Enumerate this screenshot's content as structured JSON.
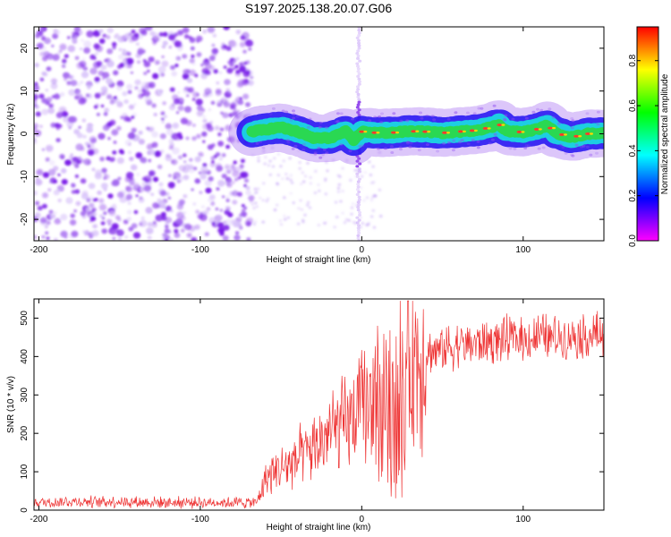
{
  "figure": {
    "title": "S197.2025.138.20.07.G06"
  },
  "chart_data": [
    {
      "type": "heatmap",
      "panel": "top",
      "xlabel": "Height of straight line (km)",
      "ylabel": "Frequency (Hz)",
      "xlim": [
        -203,
        150
      ],
      "ylim": [
        -25,
        25
      ],
      "x_ticks": [
        -200,
        -100,
        0,
        100
      ],
      "y_ticks": [
        20,
        10,
        0,
        -10,
        -20
      ],
      "colorbar": {
        "label": "Normalized spectral amplitude",
        "range": [
          0,
          0.95
        ],
        "ticks": [
          0.0,
          0.2,
          0.4,
          0.6,
          0.8
        ],
        "colormap": [
          "#ff00ff",
          "#0000ff",
          "#00ffff",
          "#00ff00",
          "#ffff00",
          "#ff0000"
        ]
      },
      "features": {
        "noise_region_x": [
          -203,
          -68
        ],
        "signal_start_x": -68,
        "spike_x": -2,
        "ridge": {
          "x": [
            -68,
            -60,
            -50,
            -40,
            -30,
            -20,
            -10,
            -5,
            0,
            10,
            20,
            30,
            40,
            50,
            60,
            70,
            80,
            85,
            90,
            100,
            110,
            115,
            120,
            130,
            140,
            150
          ],
          "freq": [
            0.5,
            1.0,
            1.5,
            0.5,
            -1.0,
            -1.0,
            0.5,
            -1.5,
            0.5,
            0.2,
            0.3,
            0.6,
            0.5,
            0.2,
            0.5,
            0.8,
            1.5,
            2.2,
            0.6,
            0.4,
            1.2,
            2.0,
            0.2,
            -0.8,
            0.0,
            0.2
          ]
        }
      },
      "colors": {
        "noise": "#8a2be2",
        "ridge_peak": "#ff3a2a"
      }
    },
    {
      "type": "line",
      "panel": "bottom",
      "xlabel": "Height of straight line (km)",
      "ylabel": "SNR (10 * v/v)",
      "xlim": [
        -203,
        150
      ],
      "ylim": [
        0,
        550
      ],
      "x_ticks": [
        -200,
        -100,
        0,
        100
      ],
      "y_ticks": [
        0,
        100,
        200,
        300,
        400,
        500
      ],
      "series": [
        {
          "color": "#ee3333",
          "x": [
            -203,
            -180,
            -150,
            -120,
            -100,
            -80,
            -65,
            -60,
            -50,
            -40,
            -30,
            -20,
            -10,
            0,
            10,
            20,
            25,
            30,
            40,
            50,
            60,
            70,
            80,
            90,
            100,
            110,
            120,
            130,
            140,
            150
          ],
          "y": [
            20,
            22,
            22,
            20,
            20,
            20,
            20,
            80,
            110,
            130,
            160,
            200,
            220,
            260,
            300,
            340,
            370,
            390,
            410,
            420,
            430,
            435,
            440,
            445,
            445,
            450,
            450,
            455,
            455,
            455
          ]
        }
      ],
      "features": {
        "dropout_region_x": [
          5,
          28
        ]
      }
    }
  ]
}
